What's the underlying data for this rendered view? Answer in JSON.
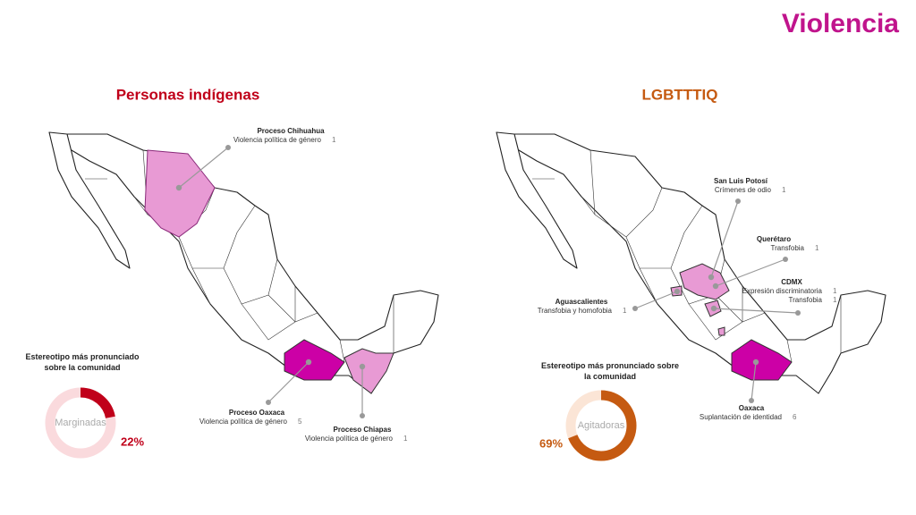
{
  "title": "Violencia",
  "panels": [
    {
      "heading": "Personas indígenas",
      "annotations": [
        {
          "title": "Proceso Chihuahua",
          "items": [
            {
              "label": "Violencia política de género",
              "count": 1
            }
          ]
        },
        {
          "title": "Proceso Oaxaca",
          "items": [
            {
              "label": "Violencia política de género",
              "count": 5
            }
          ]
        },
        {
          "title": "Proceso Chiapas",
          "items": [
            {
              "label": "Violencia política de género",
              "count": 1
            }
          ]
        }
      ],
      "stereotype": {
        "title": "Estereotipo más pronunciado sobre la comunidad",
        "label": "Marginadas",
        "value": 22,
        "value_label": "22%"
      }
    },
    {
      "heading": "LGBTTTIQ",
      "annotations": [
        {
          "title": "San Luis Potosí",
          "items": [
            {
              "label": "Crímenes de odio",
              "count": 1
            }
          ]
        },
        {
          "title": "Querétaro",
          "items": [
            {
              "label": "Transfobia",
              "count": 1
            }
          ]
        },
        {
          "title": "CDMX",
          "items": [
            {
              "label": "Expresión discriminatoria",
              "count": 1
            },
            {
              "label": "Transfobia",
              "count": 1
            }
          ]
        },
        {
          "title": "Aguascalientes",
          "items": [
            {
              "label": "Transfobia y homofobia",
              "count": 1
            }
          ]
        },
        {
          "title": "Oaxaca",
          "items": [
            {
              "label": "Suplantación de identidad",
              "count": 6
            }
          ]
        }
      ],
      "stereotype": {
        "title": "Estereotipo más pronunciado sobre la comunidad",
        "label": "Agitadoras",
        "value": 69,
        "value_label": "69%"
      }
    }
  ]
}
